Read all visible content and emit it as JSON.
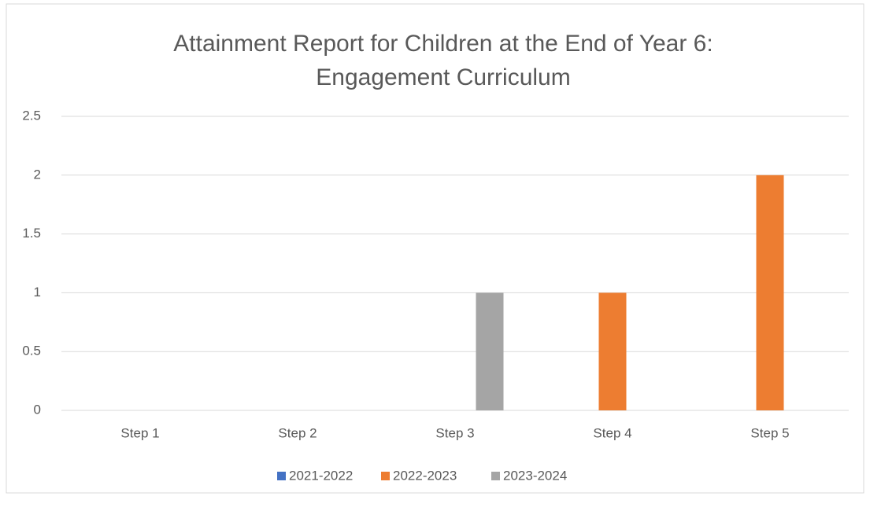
{
  "chart_data": {
    "type": "bar",
    "title": [
      "Attainment Report for Children at the End of Year 6:",
      "Engagement Curriculum"
    ],
    "categories": [
      "Step 1",
      "Step 2",
      "Step 3",
      "Step 4",
      "Step 5"
    ],
    "series": [
      {
        "name": "2021-2022",
        "color": "#4472c4",
        "values": [
          0,
          0,
          0,
          0,
          0
        ]
      },
      {
        "name": "2022-2023",
        "color": "#ed7d31",
        "values": [
          0,
          0,
          0,
          1,
          2
        ]
      },
      {
        "name": "2023-2024",
        "color": "#a5a5a5",
        "values": [
          0,
          0,
          1,
          0,
          0
        ]
      }
    ],
    "ylim": [
      0,
      2.5
    ],
    "yticks": [
      0,
      0.5,
      1,
      1.5,
      2,
      2.5
    ],
    "grid": true,
    "legend": "bottom"
  }
}
